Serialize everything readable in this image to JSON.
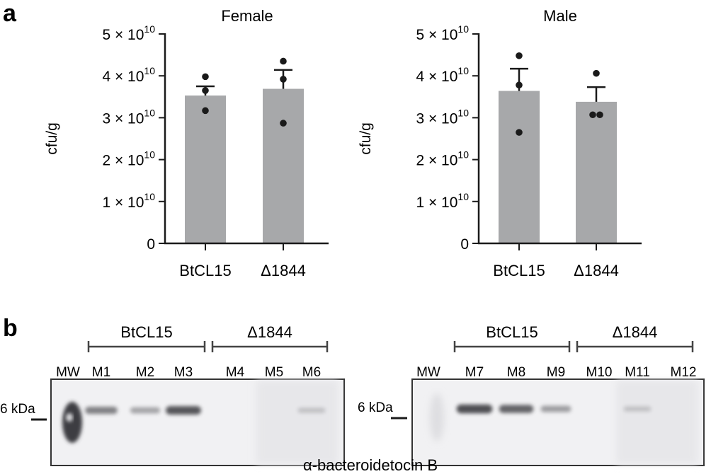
{
  "panels": {
    "a": "a",
    "b": "b"
  },
  "chart_data": [
    {
      "type": "bar",
      "title": "Female",
      "xlabel": "",
      "ylabel": "cfu/g",
      "categories": [
        "BtCL15",
        "Δ1844"
      ],
      "values": [
        35300000000.0,
        36900000000.0
      ],
      "error": [
        2200000000.0,
        4500000000.0
      ],
      "points": [
        [
          39800000000.0,
          36500000000.0,
          31700000000.0
        ],
        [
          43500000000.0,
          39200000000.0,
          28700000000.0
        ]
      ],
      "ylim": [
        0,
        50000000000.0
      ],
      "ytick_values": [
        0,
        10000000000.0,
        20000000000.0,
        30000000000.0,
        40000000000.0,
        50000000000.0
      ],
      "ytick_mantissa": [
        "0",
        "1 × 10",
        "2 × 10",
        "3 × 10",
        "4 × 10",
        "5 × 10"
      ],
      "ytick_exponent": [
        "",
        "10",
        "10",
        "10",
        "10",
        "10"
      ],
      "bar_color": "#a7a8aa"
    },
    {
      "type": "bar",
      "title": "Male",
      "xlabel": "",
      "ylabel": "cfu/g",
      "categories": [
        "BtCL15",
        "Δ1844"
      ],
      "values": [
        36400000000.0,
        33800000000.0
      ],
      "error": [
        5300000000.0,
        3500000000.0
      ],
      "points": [
        [
          44800000000.0,
          37800000000.0,
          26500000000.0
        ],
        [
          40600000000.0,
          30700000000.0,
          30700000000.0
        ]
      ],
      "ylim": [
        0,
        50000000000.0
      ],
      "ytick_values": [
        0,
        10000000000.0,
        20000000000.0,
        30000000000.0,
        40000000000.0,
        50000000000.0
      ],
      "ytick_mantissa": [
        "0",
        "1 × 10",
        "2 × 10",
        "3 × 10",
        "4 × 10",
        "5 × 10"
      ],
      "ytick_exponent": [
        "",
        "10",
        "10",
        "10",
        "10",
        "10"
      ],
      "bar_color": "#a7a8aa"
    }
  ],
  "blots": [
    {
      "groups": [
        {
          "name": "BtCL15",
          "lanes": [
            "M1",
            "M2",
            "M3"
          ]
        },
        {
          "name": "Δ1844",
          "lanes": [
            "M4",
            "M5",
            "M6"
          ]
        }
      ],
      "marker_lane": "MW",
      "size_marker": "6 kDa",
      "band_intensity": [
        0.55,
        0.3,
        0.85,
        0,
        0,
        0.05
      ]
    },
    {
      "groups": [
        {
          "name": "BtCL15",
          "lanes": [
            "M7",
            "M8",
            "M9"
          ]
        },
        {
          "name": "Δ1844",
          "lanes": [
            "M10",
            "M11",
            "M12"
          ]
        }
      ],
      "marker_lane": "MW",
      "size_marker": "6 kDa",
      "band_intensity": [
        0.9,
        0.75,
        0.35,
        0,
        0.05,
        0
      ]
    }
  ],
  "caption": "α-bacteroidetocin B",
  "colors": {
    "ink": "#1a1a1a",
    "bar": "#a7a8aa",
    "membrane": "#f1f1f3",
    "band": "#4a4a4e"
  }
}
